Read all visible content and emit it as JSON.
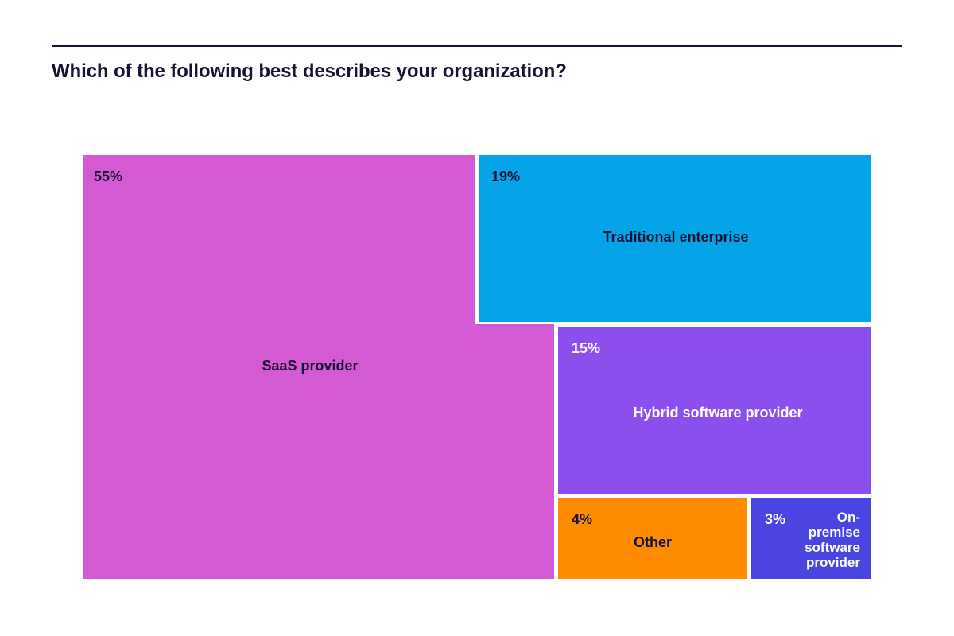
{
  "title": "Which of the following best describes your organization?",
  "chart_data": {
    "type": "treemap",
    "title": "Which of the following best describes your organization?",
    "unit": "%",
    "items": [
      {
        "label": "SaaS provider",
        "percent_label": "55%",
        "value": 55,
        "color": "#D45AD4",
        "text_color": "#141432"
      },
      {
        "label": "Traditional enterprise",
        "percent_label": "19%",
        "value": 19,
        "color": "#05A3E8",
        "text_color": "#141432"
      },
      {
        "label": "Hybrid software provider",
        "percent_label": "15%",
        "value": 15,
        "color": "#8B4FEE",
        "text_color": "#FFFFFF"
      },
      {
        "label": "Other",
        "percent_label": "4%",
        "value": 4,
        "color": "#FF8C00",
        "text_color": "#141432"
      },
      {
        "label": "On-premise software provider",
        "percent_label": "3%",
        "value": 3,
        "color": "#4A45E0",
        "text_color": "#FFFFFF"
      }
    ]
  }
}
